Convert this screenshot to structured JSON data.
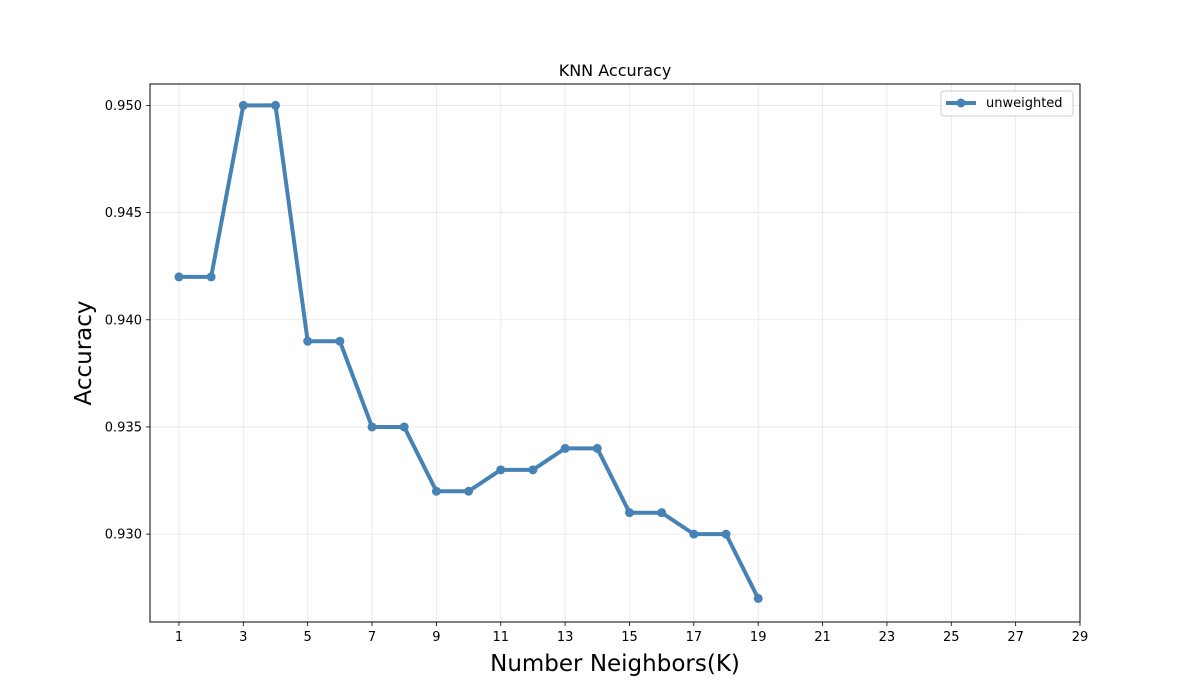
{
  "chart_data": {
    "type": "line",
    "title": "KNN Accuracy",
    "xlabel": "Number Neighbors(K)",
    "ylabel": "Accuracy",
    "xlim": [
      0.1,
      29
    ],
    "ylim": [
      0.9259,
      0.951
    ],
    "xticks": [
      1,
      3,
      5,
      7,
      9,
      11,
      13,
      15,
      17,
      19,
      21,
      23,
      25,
      27,
      29
    ],
    "yticks": [
      0.93,
      0.935,
      0.94,
      0.945,
      0.95
    ],
    "ytick_labels": [
      "0.930",
      "0.935",
      "0.940",
      "0.945",
      "0.950"
    ],
    "grid": true,
    "legend_position": "top-right",
    "series": [
      {
        "name": "unweighted",
        "color": "#4682b4",
        "marker": "circle",
        "x": [
          1,
          2,
          3,
          4,
          5,
          6,
          7,
          8,
          9,
          10,
          11,
          12,
          13,
          14,
          15,
          16,
          17,
          18,
          19
        ],
        "y": [
          0.942,
          0.942,
          0.95,
          0.95,
          0.939,
          0.939,
          0.935,
          0.935,
          0.932,
          0.932,
          0.933,
          0.933,
          0.934,
          0.934,
          0.931,
          0.931,
          0.93,
          0.93,
          0.927
        ]
      }
    ]
  }
}
